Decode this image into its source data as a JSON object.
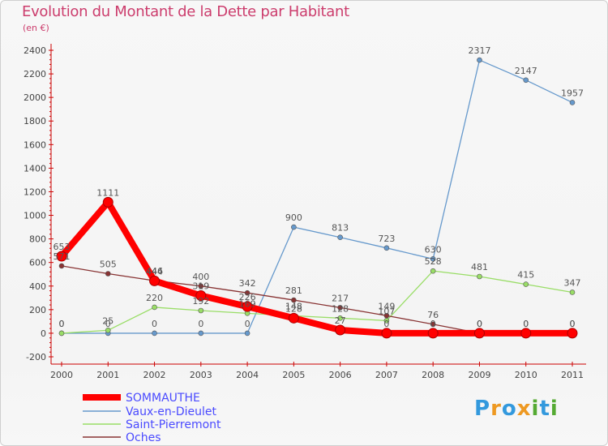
{
  "chart_data": {
    "type": "line",
    "title": "Evolution du Montant de la Dette par Habitant",
    "subtitle": "(en €)",
    "x": [
      "2000",
      "2001",
      "2002",
      "2003",
      "2004",
      "2005",
      "2006",
      "2007",
      "2008",
      "2009",
      "2010",
      "2011"
    ],
    "ylim": [
      -200,
      2400
    ],
    "yticks": [
      -200,
      0,
      200,
      400,
      600,
      800,
      1000,
      1200,
      1400,
      1600,
      1800,
      2000,
      2200,
      2400
    ],
    "legend_position": "bottom-left",
    "grid": false,
    "series": [
      {
        "name": "SOMMAUTHE",
        "color": "#ff0000",
        "values": [
          653,
          1111,
          444,
          319,
          226,
          128,
          27,
          0,
          0,
          0,
          0,
          0
        ]
      },
      {
        "name": "Vaux-en-Dieulet",
        "color": "#6699cc",
        "values": [
          0,
          0,
          0,
          0,
          0,
          900,
          813,
          723,
          630,
          2317,
          2147,
          1957
        ]
      },
      {
        "name": "Saint-Pierremont",
        "color": "#99dd66",
        "values": [
          0,
          25,
          220,
          192,
          169,
          148,
          128,
          107,
          528,
          481,
          415,
          347
        ]
      },
      {
        "name": "Oches",
        "color": "#883333",
        "values": [
          571,
          505,
          446,
          400,
          342,
          281,
          217,
          149,
          76,
          0,
          0,
          0
        ]
      }
    ]
  },
  "logo": {
    "letters": [
      "P",
      "r",
      "o",
      "x",
      "i",
      "t",
      "i"
    ],
    "colors": [
      "#3399dd",
      "#ee9922",
      "#3399dd",
      "#ee9922",
      "#55aa33",
      "#3399dd",
      "#55aa33"
    ]
  }
}
